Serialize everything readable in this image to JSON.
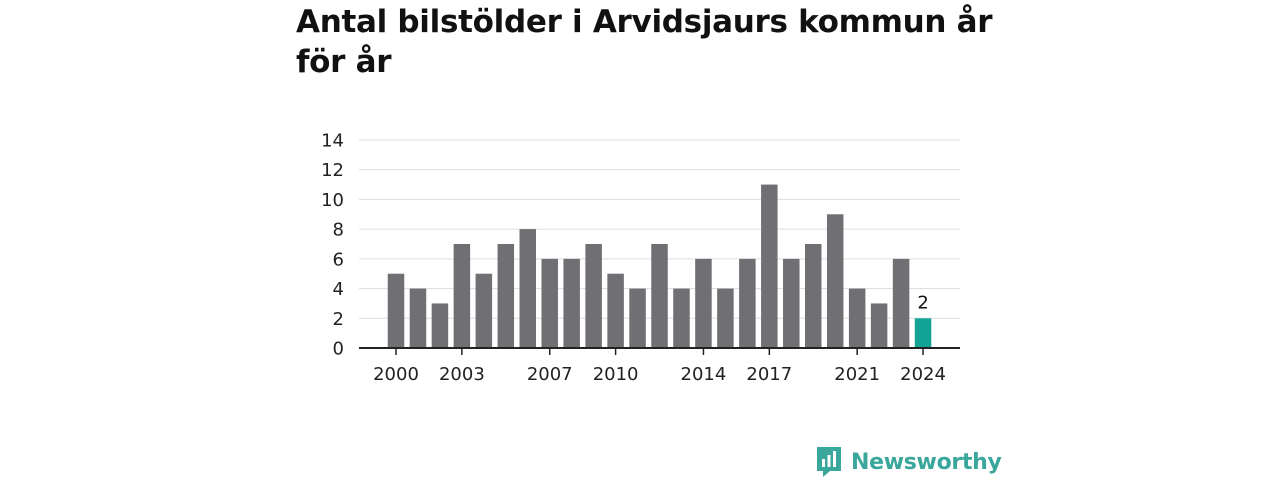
{
  "title": "Antal bilstölder i Arvidsjaurs kommun år för år",
  "brand": {
    "name": "Newsworthy",
    "icon": "newsworthy-logo-icon"
  },
  "colors": {
    "bar": "#707074",
    "highlight": "#13a395",
    "grid": "#dddddd",
    "axis": "#222222"
  },
  "chart_data": {
    "type": "bar",
    "title": "Antal bilstölder i Arvidsjaurs kommun år för år",
    "xlabel": "",
    "ylabel": "",
    "categories": [
      "2000",
      "2001",
      "2002",
      "2003",
      "2004",
      "2005",
      "2006",
      "2007",
      "2008",
      "2009",
      "2010",
      "2011",
      "2012",
      "2013",
      "2014",
      "2015",
      "2016",
      "2017",
      "2018",
      "2019",
      "2020",
      "2021",
      "2022",
      "2023",
      "2024"
    ],
    "values": [
      5,
      4,
      3,
      7,
      5,
      7,
      8,
      6,
      6,
      7,
      5,
      4,
      7,
      4,
      6,
      4,
      6,
      11,
      6,
      7,
      9,
      4,
      3,
      6,
      2
    ],
    "x_tick_labels": [
      "2000",
      "2003",
      "2007",
      "2010",
      "2014",
      "2017",
      "2021",
      "2024"
    ],
    "y_ticks": [
      0,
      2,
      4,
      6,
      8,
      10,
      12,
      14
    ],
    "ylim": [
      0,
      14
    ],
    "grid": true,
    "highlight_category": "2024",
    "data_labels": [
      {
        "category": "2024",
        "text": "2"
      }
    ],
    "legend": "none"
  }
}
